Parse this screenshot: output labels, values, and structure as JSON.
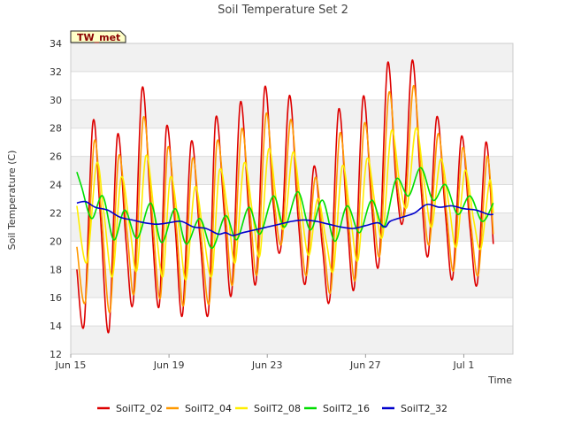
{
  "chart_data": {
    "type": "line",
    "title": "Soil Temperature Set 2",
    "xlabel": "Time",
    "ylabel": "Soil Temperature (C)",
    "badge": "TW_met",
    "x_ticks": [
      "Jun 15",
      "Jun 19",
      "Jun 23",
      "Jun 27",
      "Jul 1"
    ],
    "y_ticks": [
      12,
      14,
      16,
      18,
      20,
      22,
      24,
      26,
      28,
      30,
      32,
      34
    ],
    "xlim": [
      0,
      18.0
    ],
    "ylim": [
      12,
      34
    ],
    "x_unit": "days from Jun 15",
    "grid": true,
    "legend": "bottom",
    "series": [
      {
        "name": "SoilT2_02",
        "color": "#dd0000",
        "x": [
          0.25,
          0.55,
          0.9,
          1.2,
          1.55,
          1.9,
          2.25,
          2.55,
          2.9,
          3.25,
          3.6,
          3.9,
          4.25,
          4.55,
          4.9,
          5.25,
          5.6,
          5.9,
          6.25,
          6.55,
          6.9,
          7.25,
          7.55,
          7.9,
          8.25,
          8.55,
          8.9,
          9.25,
          9.55,
          9.9,
          10.25,
          10.55,
          10.9,
          11.25,
          11.55,
          11.9,
          12.25,
          12.55,
          12.9,
          13.25,
          13.55,
          13.9,
          14.25,
          14.55,
          14.9,
          15.25,
          15.55,
          15.9,
          16.25,
          16.55,
          16.9,
          17.2
        ],
        "y": [
          18.0,
          14.2,
          28.4,
          22.0,
          13.6,
          27.5,
          20.0,
          15.8,
          30.8,
          22.5,
          15.4,
          28.1,
          21.0,
          14.8,
          27.0,
          20.5,
          14.9,
          28.7,
          22.0,
          16.3,
          29.8,
          22.0,
          17.2,
          30.9,
          22.5,
          19.5,
          30.3,
          21.8,
          17.0,
          25.3,
          19.5,
          16.0,
          29.3,
          21.5,
          16.8,
          30.2,
          22.5,
          18.5,
          32.6,
          24.0,
          21.7,
          32.8,
          24.0,
          19.0,
          28.8,
          22.0,
          17.4,
          27.4,
          21.0,
          17.0,
          27.0,
          19.8
        ]
      },
      {
        "name": "SoilT2_04",
        "color": "#ff9900",
        "x": [
          0.25,
          0.6,
          0.95,
          1.25,
          1.6,
          1.95,
          2.3,
          2.6,
          2.95,
          3.3,
          3.65,
          3.95,
          4.3,
          4.6,
          4.95,
          5.3,
          5.65,
          5.95,
          6.3,
          6.6,
          6.95,
          7.3,
          7.6,
          7.95,
          8.3,
          8.6,
          8.95,
          9.3,
          9.6,
          9.95,
          10.3,
          10.6,
          10.95,
          11.3,
          11.6,
          11.95,
          12.3,
          12.6,
          12.95,
          13.3,
          13.6,
          13.95,
          14.3,
          14.6,
          14.95,
          15.3,
          15.6,
          15.95,
          16.3,
          16.6,
          16.95,
          17.2
        ],
        "y": [
          19.6,
          15.8,
          27.0,
          22.0,
          15.0,
          26.0,
          20.5,
          16.5,
          28.7,
          22.3,
          16.0,
          26.6,
          21.0,
          15.5,
          25.8,
          20.5,
          15.7,
          27.0,
          22.0,
          17.0,
          27.9,
          22.0,
          17.8,
          29.0,
          22.5,
          20.0,
          28.6,
          22.0,
          17.6,
          24.5,
          19.8,
          16.6,
          27.6,
          21.5,
          17.4,
          28.3,
          22.5,
          19.2,
          30.5,
          24.0,
          22.0,
          31.0,
          24.0,
          19.8,
          27.6,
          22.0,
          18.0,
          26.6,
          21.0,
          17.7,
          26.0,
          20.5
        ]
      },
      {
        "name": "SoilT2_08",
        "color": "#ffee00",
        "x": [
          0.25,
          0.65,
          1.05,
          1.35,
          1.7,
          2.05,
          2.4,
          2.7,
          3.05,
          3.4,
          3.75,
          4.05,
          4.4,
          4.7,
          5.05,
          5.4,
          5.75,
          6.05,
          6.4,
          6.7,
          7.05,
          7.4,
          7.7,
          8.05,
          8.4,
          8.7,
          9.05,
          9.4,
          9.7,
          10.05,
          10.4,
          10.7,
          11.05,
          11.4,
          11.7,
          12.05,
          12.4,
          12.7,
          13.05,
          13.4,
          13.7,
          14.05,
          14.4,
          14.7,
          15.05,
          15.4,
          15.7,
          16.05,
          16.4,
          16.7,
          17.05,
          17.2
        ],
        "y": [
          22.5,
          18.5,
          25.5,
          22.0,
          17.5,
          24.5,
          21.0,
          18.0,
          26.0,
          22.0,
          17.5,
          24.5,
          21.0,
          17.3,
          23.8,
          20.5,
          17.6,
          25.0,
          22.0,
          18.5,
          25.5,
          22.0,
          19.0,
          26.5,
          22.5,
          21.0,
          26.3,
          22.0,
          19.0,
          23.0,
          20.0,
          18.0,
          25.3,
          21.5,
          18.7,
          25.8,
          22.5,
          20.4,
          27.8,
          24.0,
          22.5,
          28.0,
          24.0,
          21.0,
          25.8,
          22.5,
          19.6,
          25.0,
          21.5,
          19.5,
          24.3,
          22.0
        ]
      },
      {
        "name": "SoilT2_16",
        "color": "#00dd00",
        "x": [
          0.25,
          0.45,
          0.85,
          1.3,
          1.75,
          2.2,
          2.7,
          3.25,
          3.7,
          4.25,
          4.7,
          5.25,
          5.75,
          6.3,
          6.75,
          7.25,
          7.7,
          8.25,
          8.7,
          9.25,
          9.75,
          10.25,
          10.75,
          11.25,
          11.75,
          12.25,
          12.75,
          13.25,
          13.75,
          14.25,
          14.75,
          15.25,
          15.75,
          16.25,
          16.75,
          17.2
        ],
        "y": [
          24.9,
          23.8,
          21.6,
          23.2,
          20.1,
          22.2,
          20.2,
          22.7,
          19.9,
          22.3,
          19.8,
          21.6,
          19.5,
          21.8,
          20.1,
          22.4,
          20.5,
          23.2,
          21.0,
          23.5,
          20.8,
          22.9,
          20.0,
          22.5,
          20.6,
          22.9,
          21.0,
          24.4,
          23.2,
          25.2,
          22.9,
          24.0,
          21.9,
          23.2,
          21.4,
          22.7
        ]
      },
      {
        "name": "SoilT2_32",
        "color": "#0000cc",
        "x": [
          0.25,
          0.6,
          1.0,
          1.5,
          2.0,
          2.5,
          3.0,
          3.5,
          4.0,
          4.5,
          5.0,
          5.5,
          6.0,
          6.3,
          6.6,
          7.0,
          7.5,
          8.0,
          8.5,
          9.0,
          9.5,
          10.0,
          10.5,
          11.0,
          11.5,
          12.0,
          12.5,
          12.8,
          13.0,
          13.5,
          14.0,
          14.5,
          15.0,
          15.5,
          16.0,
          16.5,
          17.0,
          17.2
        ],
        "y": [
          22.7,
          22.8,
          22.4,
          22.2,
          21.7,
          21.5,
          21.3,
          21.2,
          21.3,
          21.4,
          21.0,
          20.9,
          20.5,
          20.6,
          20.4,
          20.6,
          20.8,
          21.0,
          21.2,
          21.4,
          21.5,
          21.4,
          21.2,
          21.0,
          20.9,
          21.1,
          21.3,
          21.0,
          21.4,
          21.7,
          22.0,
          22.6,
          22.4,
          22.5,
          22.3,
          22.2,
          21.9,
          21.9
        ]
      }
    ]
  }
}
